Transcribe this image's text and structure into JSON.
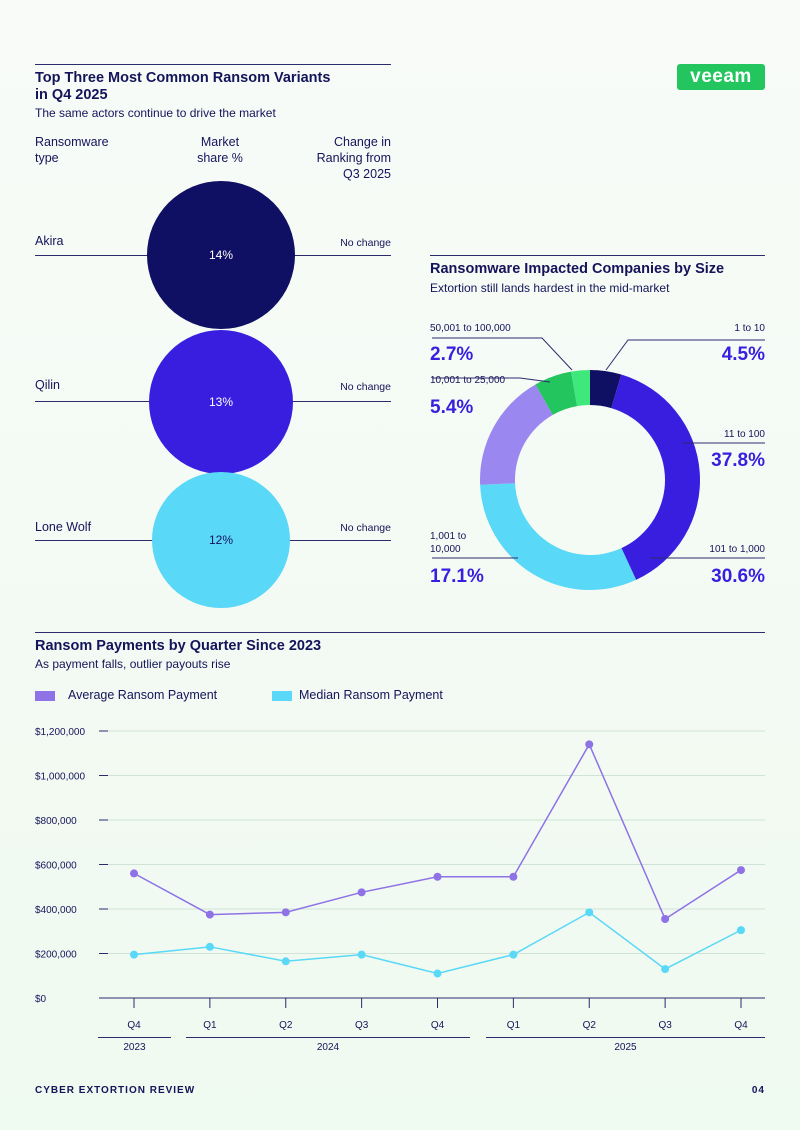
{
  "brand": {
    "logo_text": "veeam",
    "logo_color": "#22c55e"
  },
  "variants": {
    "title_line1": "Top Three Most Common Ransom Variants",
    "title_line2": "in Q4 2025",
    "subtitle": "The same actors continue to drive the market",
    "col_type_line1": "Ransomware",
    "col_type_line2": "type",
    "col_share_line1": "Market",
    "col_share_line2": "share %",
    "col_change_line1": "Change in",
    "col_change_line2": "Ranking from",
    "col_change_line3": "Q3 2025",
    "rows": [
      {
        "name": "Akira",
        "share": "14%",
        "change": "No change",
        "color": "#0f0f63"
      },
      {
        "name": "Qilin",
        "share": "13%",
        "change": "No change",
        "color": "#3a1ee0"
      },
      {
        "name": "Lone Wolf",
        "share": "12%",
        "change": "No change",
        "color": "#5ad8f8"
      }
    ]
  },
  "companies": {
    "title": "Ransomware Impacted Companies by Size",
    "subtitle": "Extortion still lands hardest in the mid-market",
    "labels": {
      "s1_name": "1 to 10",
      "s1_pct": "4.5%",
      "s2_name": "11 to 100",
      "s2_pct": "37.8%",
      "s3_name": "101 to 1,000",
      "s3_pct": "30.6%",
      "s4_name_line1": "1,001 to",
      "s4_name_line2": "10,000",
      "s4_pct": "17.1%",
      "s5_name": "10,001 to 25,000",
      "s5_pct": "5.4%",
      "s6_name": "50,001 to 100,000",
      "s6_pct": "2.7%"
    }
  },
  "payments": {
    "title": "Ransom Payments by Quarter Since 2023",
    "subtitle": "As payment falls, outlier payouts rise",
    "legend_avg": "Average Ransom Payment",
    "legend_med": "Median Ransom Payment",
    "years": {
      "y2023": "2023",
      "y2024": "2024",
      "y2025": "2025"
    }
  },
  "footer": {
    "left": "CYBER EXTORTION REVIEW",
    "right": "04"
  },
  "chart_data": [
    {
      "type": "pie",
      "title": "Ransomware Impacted Companies by Size",
      "categories": [
        "1 to 10",
        "11 to 100",
        "101 to 1,000",
        "1,001 to 10,000",
        "10,001 to 25,000",
        "50,001 to 100,000"
      ],
      "values": [
        4.5,
        37.8,
        30.6,
        17.1,
        5.4,
        2.7
      ],
      "colors": [
        "#0f0f63",
        "#3a1ee0",
        "#5ad8f8",
        "#9b87f0",
        "#22c55e",
        "#3ee87a"
      ]
    },
    {
      "type": "line",
      "title": "Ransom Payments by Quarter Since 2023",
      "categories": [
        "Q4",
        "Q1",
        "Q2",
        "Q3",
        "Q4",
        "Q1",
        "Q2",
        "Q3",
        "Q4"
      ],
      "series": [
        {
          "name": "Average Ransom Payment",
          "color": "#8e72e6",
          "values": [
            560000,
            375000,
            385000,
            475000,
            545000,
            545000,
            1140000,
            355000,
            575000
          ]
        },
        {
          "name": "Median Ransom Payment",
          "color": "#5ad8f8",
          "values": [
            195000,
            230000,
            165000,
            195000,
            110000,
            195000,
            385000,
            130000,
            305000
          ]
        }
      ],
      "yticks": [
        "$0",
        "$200,000",
        "$400,000",
        "$600,000",
        "$800,000",
        "$1,000,000",
        "$1,200,000"
      ],
      "ylim": [
        0,
        1200000
      ],
      "grid": true,
      "legend": "top-left"
    }
  ]
}
